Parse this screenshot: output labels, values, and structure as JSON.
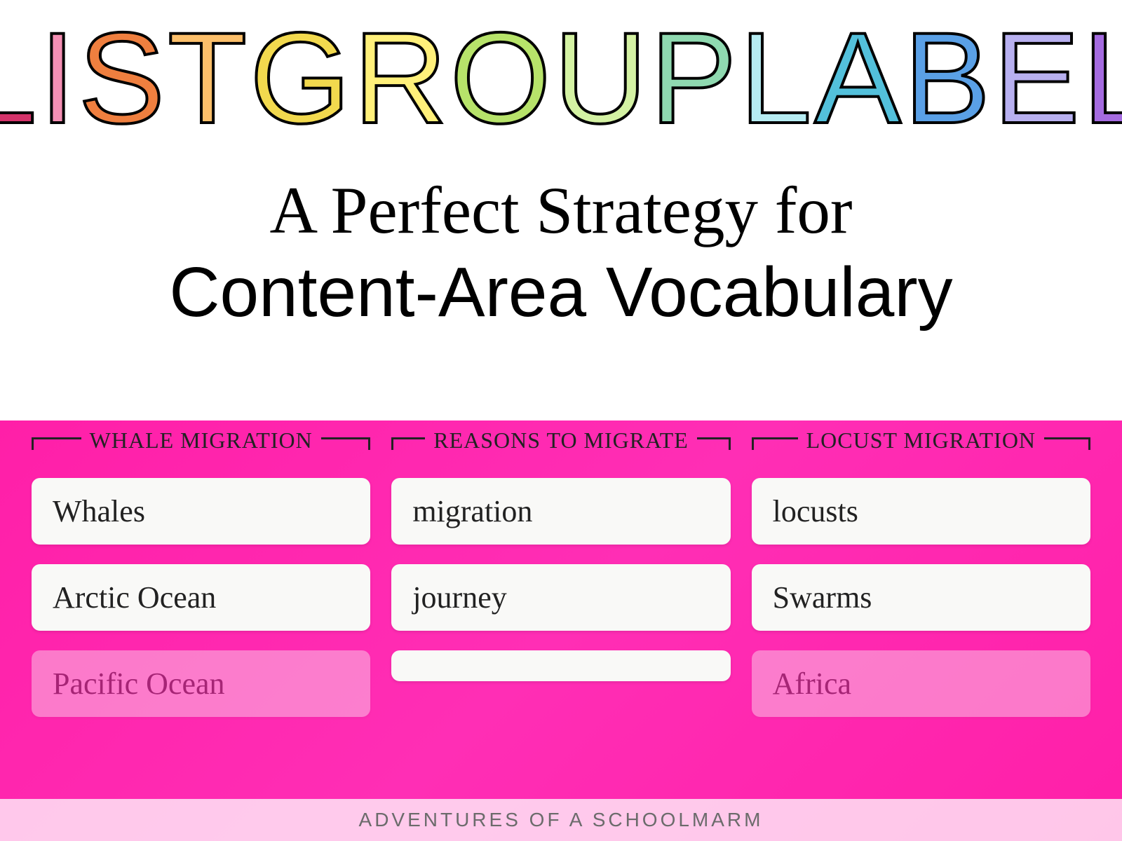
{
  "title": {
    "letters": [
      "L",
      "I",
      "S",
      "T",
      " ",
      "G",
      "R",
      "O",
      "U",
      "P",
      " ",
      "L",
      "A",
      "B",
      "E",
      "L"
    ],
    "colors": [
      "#d4336a",
      "#f58fb4",
      "#ef7f3f",
      "#fcbf6a",
      "",
      "#f2d94e",
      "#fff07a",
      "#b7e36a",
      "#d4f2a3",
      "#8fd9b0",
      "",
      "#b6ecf2",
      "#53c0db",
      "#5aa0e6",
      "#b8b0f0",
      "#a56be0"
    ],
    "stroke": "#000000"
  },
  "subtitle": {
    "line1": "A Perfect Strategy for",
    "line2": "Content-Area Vocabulary"
  },
  "board": {
    "background": "#ff1fa8",
    "groups": [
      {
        "label": "WHALE MIGRATION",
        "cards": [
          "Whales",
          "Arctic Ocean",
          "Pacific Ocean"
        ]
      },
      {
        "label": "REASONS TO MIGRATE",
        "cards": [
          "migration",
          "journey",
          ""
        ]
      },
      {
        "label": "LOCUST MIGRATION",
        "cards": [
          "locusts",
          "Swarms",
          "Africa"
        ]
      }
    ]
  },
  "footer": "ADVENTURES OF A SCHOOLMARM"
}
